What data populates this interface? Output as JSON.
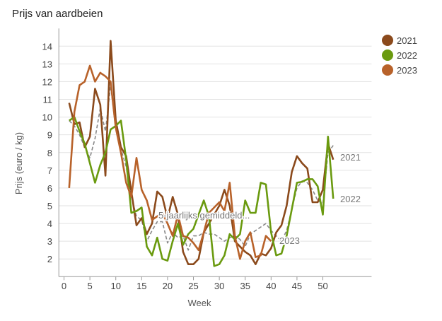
{
  "chart_data": {
    "type": "line",
    "title": "Prijs van aardbeien",
    "xlabel": "Week",
    "ylabel": "Prijs (euro / kg)",
    "xlim": [
      -1,
      59
    ],
    "ylim": [
      1,
      15
    ],
    "xticks": [
      0,
      5,
      10,
      15,
      20,
      25,
      30,
      35,
      40,
      45,
      50
    ],
    "yticks": [
      2,
      3,
      4,
      5,
      6,
      7,
      8,
      9,
      10,
      11,
      12,
      13,
      14
    ],
    "grid": true,
    "legend_position": "top-right",
    "series": [
      {
        "name": "2021",
        "color": "#8b4a1c",
        "dashed": false,
        "end_label": "2021",
        "x": [
          1,
          2,
          3,
          4,
          5,
          6,
          7,
          8,
          9,
          10,
          11,
          12,
          13,
          14,
          15,
          16,
          17,
          18,
          19,
          20,
          21,
          22,
          23,
          24,
          25,
          26,
          27,
          28,
          29,
          30,
          31,
          32,
          33,
          34,
          35,
          36,
          37,
          38,
          39,
          40,
          41,
          42,
          43,
          44,
          45,
          46,
          47,
          48,
          49,
          50,
          51,
          52
        ],
        "values": [
          10.8,
          9.6,
          9.7,
          8.3,
          8.9,
          11.6,
          10.7,
          6.7,
          14.3,
          9.8,
          8.3,
          7.8,
          5.8,
          3.9,
          4.3,
          3.4,
          4.0,
          5.8,
          5.5,
          4.3,
          5.5,
          4.5,
          2.4,
          1.7,
          1.7,
          2.0,
          3.5,
          4.0,
          4.5,
          5.0,
          5.9,
          5.0,
          3.0,
          2.7,
          2.4,
          2.2,
          1.7,
          2.3,
          2.2,
          2.6,
          3.5,
          3.9,
          5.0,
          6.9,
          7.8,
          7.4,
          7.1,
          5.2,
          5.2,
          5.9,
          8.5,
          7.6
        ]
      },
      {
        "name": "2022",
        "color": "#6a9a0f",
        "dashed": false,
        "end_label": "2022",
        "x": [
          1,
          2,
          3,
          4,
          5,
          6,
          7,
          8,
          9,
          10,
          11,
          12,
          13,
          14,
          15,
          16,
          17,
          18,
          19,
          20,
          21,
          22,
          23,
          24,
          25,
          26,
          27,
          28,
          29,
          30,
          31,
          32,
          33,
          34,
          35,
          36,
          37,
          38,
          39,
          40,
          41,
          42,
          43,
          44,
          45,
          46,
          47,
          48,
          49,
          50,
          51,
          52
        ],
        "values": [
          9.8,
          10.0,
          9.2,
          8.5,
          7.4,
          6.3,
          7.3,
          8.0,
          9.3,
          9.5,
          9.8,
          7.6,
          4.6,
          4.7,
          4.9,
          2.7,
          2.2,
          3.2,
          2.0,
          1.9,
          3.0,
          4.0,
          2.8,
          3.4,
          3.7,
          4.5,
          5.3,
          4.4,
          1.6,
          1.7,
          2.2,
          3.4,
          3.1,
          3.4,
          5.3,
          4.6,
          4.6,
          6.3,
          6.2,
          3.5,
          2.2,
          2.3,
          3.3,
          4.8,
          6.3,
          6.35,
          6.5,
          6.5,
          6.1,
          4.5,
          8.9,
          5.4
        ]
      },
      {
        "name": "2023",
        "color": "#b8622a",
        "dashed": false,
        "end_label": "2023",
        "x": [
          1,
          2,
          3,
          4,
          5,
          6,
          7,
          8,
          9,
          10,
          11,
          12,
          13,
          14,
          15,
          16,
          17,
          18,
          19,
          20,
          21,
          22,
          23,
          24,
          25,
          26,
          27,
          28,
          29,
          30,
          31,
          32,
          33,
          34,
          35,
          36,
          37,
          38,
          39,
          40
        ],
        "values": [
          6.0,
          10.3,
          11.8,
          12.0,
          12.9,
          12.0,
          12.5,
          12.3,
          12.0,
          9.4,
          8.0,
          6.3,
          5.5,
          7.7,
          5.9,
          5.3,
          4.2,
          4.4,
          4.6,
          4.0,
          3.3,
          4.5,
          3.3,
          3.2,
          2.9,
          2.5,
          3.5,
          4.6,
          4.9,
          5.2,
          4.7,
          6.3,
          3.3,
          2.0,
          3.0,
          3.5,
          2.1,
          2.2,
          3.3,
          3.0
        ]
      },
      {
        "name": "5-jaarlijks gemiddeld...",
        "color": "#888888",
        "dashed": true,
        "end_label": "5-jaarlijks gemiddeld...",
        "x": [
          1,
          2,
          3,
          4,
          5,
          6,
          7,
          8,
          9,
          10,
          11,
          12,
          13,
          14,
          15,
          16,
          17,
          18,
          19,
          20,
          21,
          22,
          23,
          24,
          25,
          26,
          27,
          28,
          29,
          30,
          31,
          32,
          33,
          34,
          35,
          36,
          37,
          38,
          39,
          40,
          41,
          42,
          43,
          44,
          45,
          46,
          47,
          48,
          49,
          50,
          51,
          52
        ],
        "values": [
          9.8,
          9.5,
          9.0,
          8.3,
          7.7,
          8.8,
          10.5,
          9.2,
          11.8,
          9.3,
          8.2,
          7.2,
          5.5,
          4.4,
          4.2,
          3.0,
          3.6,
          4.1,
          4.1,
          2.9,
          3.5,
          3.2,
          3.3,
          2.5,
          3.3,
          3.3,
          3.5,
          3.4,
          3.4,
          3.2,
          3.0,
          3.2,
          3.3,
          3.1,
          2.7,
          3.4,
          3.6,
          3.8,
          4.0,
          3.6,
          3.3,
          3.0,
          3.6,
          4.8,
          6.0,
          6.4,
          6.3,
          5.9,
          5.3,
          5.1,
          8.0,
          8.4
        ]
      }
    ],
    "legend": [
      "2021",
      "2022",
      "2023"
    ]
  }
}
